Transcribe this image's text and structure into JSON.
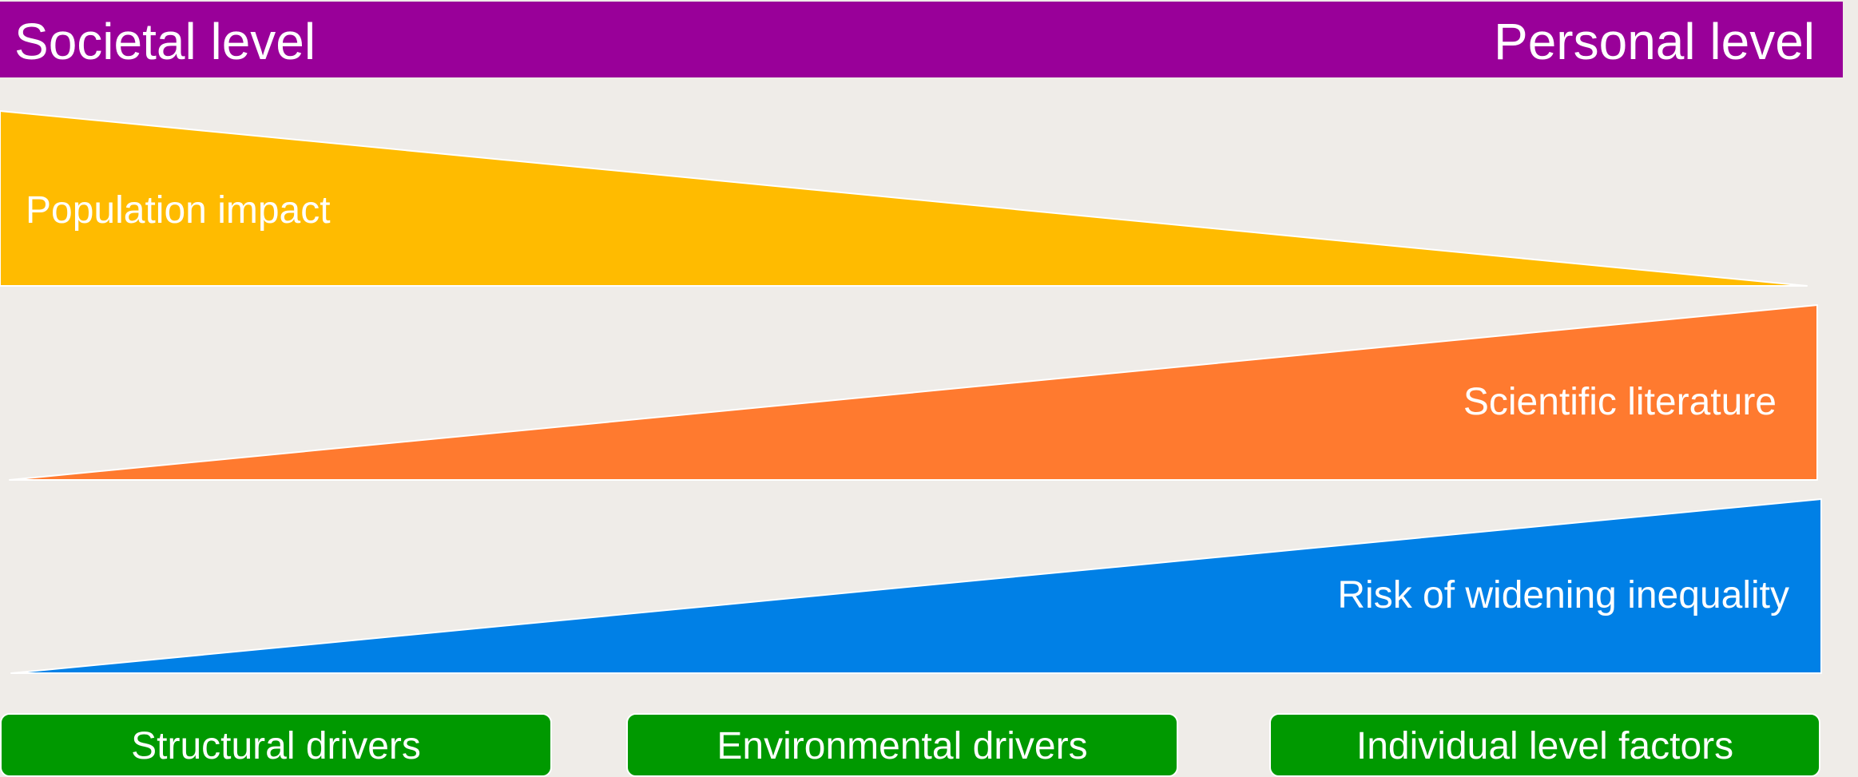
{
  "header": {
    "left_label": "Societal level",
    "right_label": "Personal level",
    "color": "#990099"
  },
  "wedges": [
    {
      "label": "Population impact",
      "color": "#ffbb00",
      "direction": "decreasing"
    },
    {
      "label": "Scientific literature",
      "color": "#ff7a2f",
      "direction": "increasing"
    },
    {
      "label": "Risk of widening inequality",
      "color": "#0080e6",
      "direction": "increasing"
    }
  ],
  "boxes": [
    {
      "label": "Structural drivers"
    },
    {
      "label": "Environmental drivers"
    },
    {
      "label": "Individual level factors"
    }
  ],
  "box_color": "#009900",
  "background": "#efece8"
}
